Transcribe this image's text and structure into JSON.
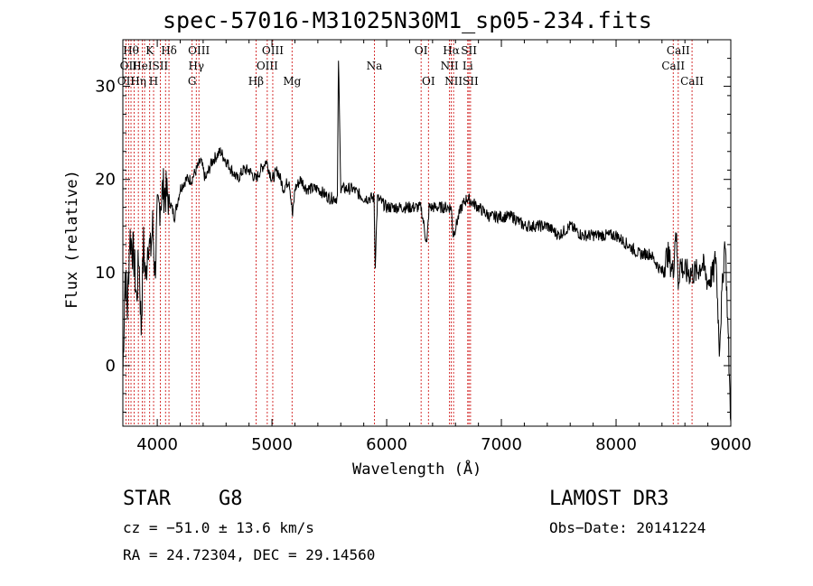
{
  "chart_data": {
    "type": "line",
    "title": "spec-57016-M31025N30M1_sp05-234.fits",
    "xlabel": "Wavelength (Å)",
    "ylabel": "Flux (relative)",
    "xlim": [
      3700,
      9000
    ],
    "ylim": [
      -6.5,
      35
    ],
    "xticks": [
      4000,
      5000,
      6000,
      7000,
      8000,
      9000
    ],
    "yticks": [
      0,
      10,
      20,
      30
    ],
    "grid": false,
    "series": [
      {
        "name": "flux",
        "x": [
          3700,
          3720,
          3740,
          3760,
          3780,
          3800,
          3820,
          3840,
          3860,
          3880,
          3900,
          3920,
          3940,
          3960,
          3980,
          4000,
          4050,
          4100,
          4150,
          4200,
          4250,
          4300,
          4340,
          4380,
          4420,
          4480,
          4550,
          4600,
          4650,
          4700,
          4750,
          4800,
          4860,
          4900,
          4950,
          5000,
          5050,
          5100,
          5150,
          5180,
          5200,
          5250,
          5300,
          5400,
          5500,
          5570,
          5580,
          5600,
          5700,
          5800,
          5890,
          5900,
          5920,
          6000,
          6100,
          6200,
          6300,
          6350,
          6370,
          6400,
          6500,
          6562,
          6580,
          6650,
          6700,
          6800,
          6900,
          7000,
          7100,
          7200,
          7300,
          7400,
          7500,
          7600,
          7700,
          7800,
          7900,
          8000,
          8100,
          8200,
          8300,
          8400,
          8450,
          8498,
          8520,
          8542,
          8560,
          8600,
          8662,
          8700,
          8750,
          8800,
          8850,
          8870,
          8900,
          8950,
          9000
        ],
        "values": [
          -1,
          10,
          6,
          14,
          13,
          11,
          7,
          12,
          4,
          13,
          9,
          14,
          12,
          15,
          10,
          16,
          19,
          18,
          16,
          19,
          20,
          20,
          21,
          22,
          20,
          22,
          23,
          22,
          21,
          20,
          21,
          21,
          20,
          21,
          22,
          20,
          21,
          19,
          20,
          16,
          19,
          20,
          19,
          19,
          18,
          18,
          33,
          19,
          19,
          18,
          18,
          11,
          18,
          17,
          17,
          17,
          17,
          13,
          17,
          17,
          17,
          17,
          14,
          17,
          18,
          17,
          16,
          16,
          16,
          15,
          15,
          15,
          14,
          15,
          14,
          14,
          14,
          14,
          13,
          12,
          12,
          10,
          12,
          10,
          15,
          9,
          11,
          10,
          10,
          10,
          11,
          9,
          10,
          12,
          2,
          14,
          -6
        ]
      }
    ],
    "lines": [
      {
        "w": 3727,
        "label": "OII",
        "row": 2
      },
      {
        "w": 3750,
        "label": "OII",
        "row": 1
      },
      {
        "w": 3771,
        "label": "Hθ",
        "row": 0
      },
      {
        "w": 3798,
        "label": "",
        "row": -1
      },
      {
        "w": 3835,
        "label": "Hη",
        "row": 2
      },
      {
        "w": 3869,
        "label": "HeI",
        "row": 1
      },
      {
        "w": 3889,
        "label": "",
        "row": -1
      },
      {
        "w": 3934,
        "label": "K",
        "row": 0
      },
      {
        "w": 3968,
        "label": "H",
        "row": 2
      },
      {
        "w": 4026,
        "label": "SII",
        "row": 1
      },
      {
        "w": 4072,
        "label": "",
        "row": -1
      },
      {
        "w": 4102,
        "label": "Hδ",
        "row": 0
      },
      {
        "w": 4304,
        "label": "G",
        "row": 2
      },
      {
        "w": 4340,
        "label": "Hγ",
        "row": 1
      },
      {
        "w": 4363,
        "label": "OIII",
        "row": 0
      },
      {
        "w": 4861,
        "label": "Hβ",
        "row": 2
      },
      {
        "w": 4959,
        "label": "OIII",
        "row": 1
      },
      {
        "w": 5007,
        "label": "OIII",
        "row": 0
      },
      {
        "w": 5175,
        "label": "Mg",
        "row": 2
      },
      {
        "w": 5893,
        "label": "Na",
        "row": 1
      },
      {
        "w": 6300,
        "label": "OI",
        "row": 0
      },
      {
        "w": 6364,
        "label": "OI",
        "row": 2
      },
      {
        "w": 6548,
        "label": "NII",
        "row": 1
      },
      {
        "w": 6563,
        "label": "Hα",
        "row": 0
      },
      {
        "w": 6583,
        "label": "NII",
        "row": 2
      },
      {
        "w": 6707,
        "label": "Li",
        "row": 1
      },
      {
        "w": 6717,
        "label": "SII",
        "row": 0
      },
      {
        "w": 6731,
        "label": "SII",
        "row": 2
      },
      {
        "w": 8498,
        "label": "CaII",
        "row": 1
      },
      {
        "w": 8542,
        "label": "CaII",
        "row": 0
      },
      {
        "w": 8662,
        "label": "CaII",
        "row": 2
      }
    ]
  },
  "info": {
    "class": "STAR",
    "subclass": "G8",
    "survey": "LAMOST DR3",
    "cz": "cz = −51.0 ± 13.6 km/s",
    "obs_date": "Obs−Date: 20141224",
    "radec": "RA =  24.72304, DEC =  29.14560"
  }
}
